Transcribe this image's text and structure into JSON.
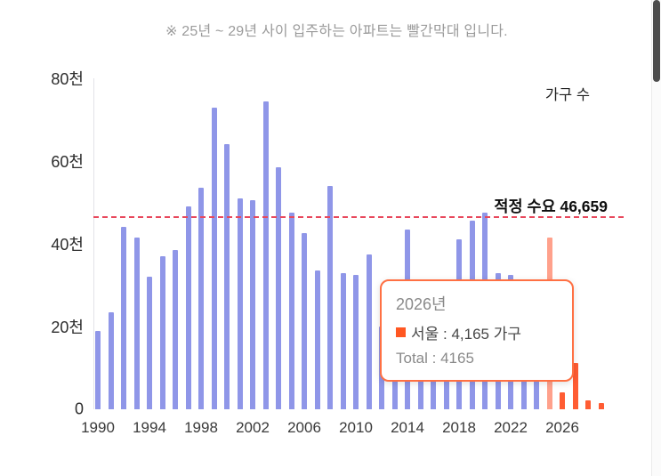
{
  "note": "※ 25년 ~ 29년 사이 입주하는 아파트는 빨간막대 입니다.",
  "chart_data": {
    "type": "bar",
    "title": "",
    "series_label": "가구 수",
    "unit": "천 (thousand households)",
    "ylim": [
      0,
      80
    ],
    "y_ticks": [
      0,
      20,
      40,
      60,
      80
    ],
    "y_tick_labels": [
      "0",
      "20천",
      "40천",
      "60천",
      "80천"
    ],
    "x_ticks": [
      1990,
      1994,
      1998,
      2002,
      2006,
      2010,
      2014,
      2018,
      2022,
      2026
    ],
    "years": [
      1990,
      1991,
      1992,
      1993,
      1994,
      1995,
      1996,
      1997,
      1998,
      1999,
      2000,
      2001,
      2002,
      2003,
      2004,
      2005,
      2006,
      2007,
      2008,
      2009,
      2010,
      2011,
      2012,
      2013,
      2014,
      2015,
      2016,
      2017,
      2018,
      2019,
      2020,
      2021,
      2022,
      2023,
      2024,
      2025,
      2026,
      2027,
      2028,
      2029
    ],
    "values": [
      19,
      23.5,
      44,
      41.5,
      32,
      37,
      38.5,
      49,
      53.5,
      73,
      64,
      51,
      50.5,
      74.5,
      58.5,
      47.5,
      42.5,
      33.5,
      54,
      33,
      32.5,
      37.5,
      20,
      23,
      43.5,
      27,
      30,
      28,
      41,
      45.5,
      47.5,
      33,
      32.5,
      25,
      22,
      41.6,
      4.165,
      11.2,
      2.2,
      1.4
    ],
    "colors": {
      "past": "#8f96e8",
      "future": "#ff5c33",
      "future_muted": "#ffa18c",
      "future_from": 2025,
      "muted_year": 2025
    },
    "reference_line": {
      "label": "적정 수요 46,659",
      "value": 46.659,
      "color": "#e8485c"
    },
    "legend_position": "top-right",
    "grid": false
  },
  "tooltip": {
    "title": "2026년",
    "row": "서울 : 4,165 가구",
    "total": "Total : 4165",
    "swatch_color": "#ff5722",
    "border_color": "#ff7043"
  },
  "scrollbar": {
    "thumb_color": "#4d4d4d"
  }
}
